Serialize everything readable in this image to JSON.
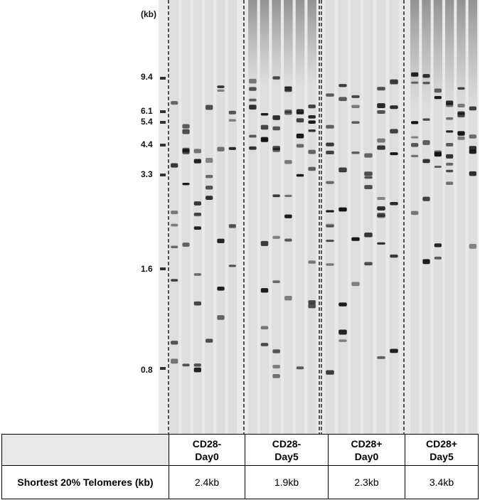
{
  "markers": {
    "unit": "(kb)",
    "sizes": [
      "9.4",
      "6.1",
      "5.4",
      "4.4",
      "3.3",
      "1.6",
      "0.8"
    ]
  },
  "table": {
    "row_label": "Shortest 20% Telomeres (kb)",
    "groups": [
      {
        "line1": "CD28-",
        "line2": "Day0",
        "value": "2.4kb"
      },
      {
        "line1": "CD28-",
        "line2": "Day5",
        "value": "1.9kb"
      },
      {
        "line1": "CD28+",
        "line2": "Day0",
        "value": "2.3kb"
      },
      {
        "line1": "CD28+",
        "line2": "Day5",
        "value": "3.4kb"
      }
    ]
  },
  "colors": {
    "gel_background": "#e9e9e9",
    "band": "#111111"
  }
}
